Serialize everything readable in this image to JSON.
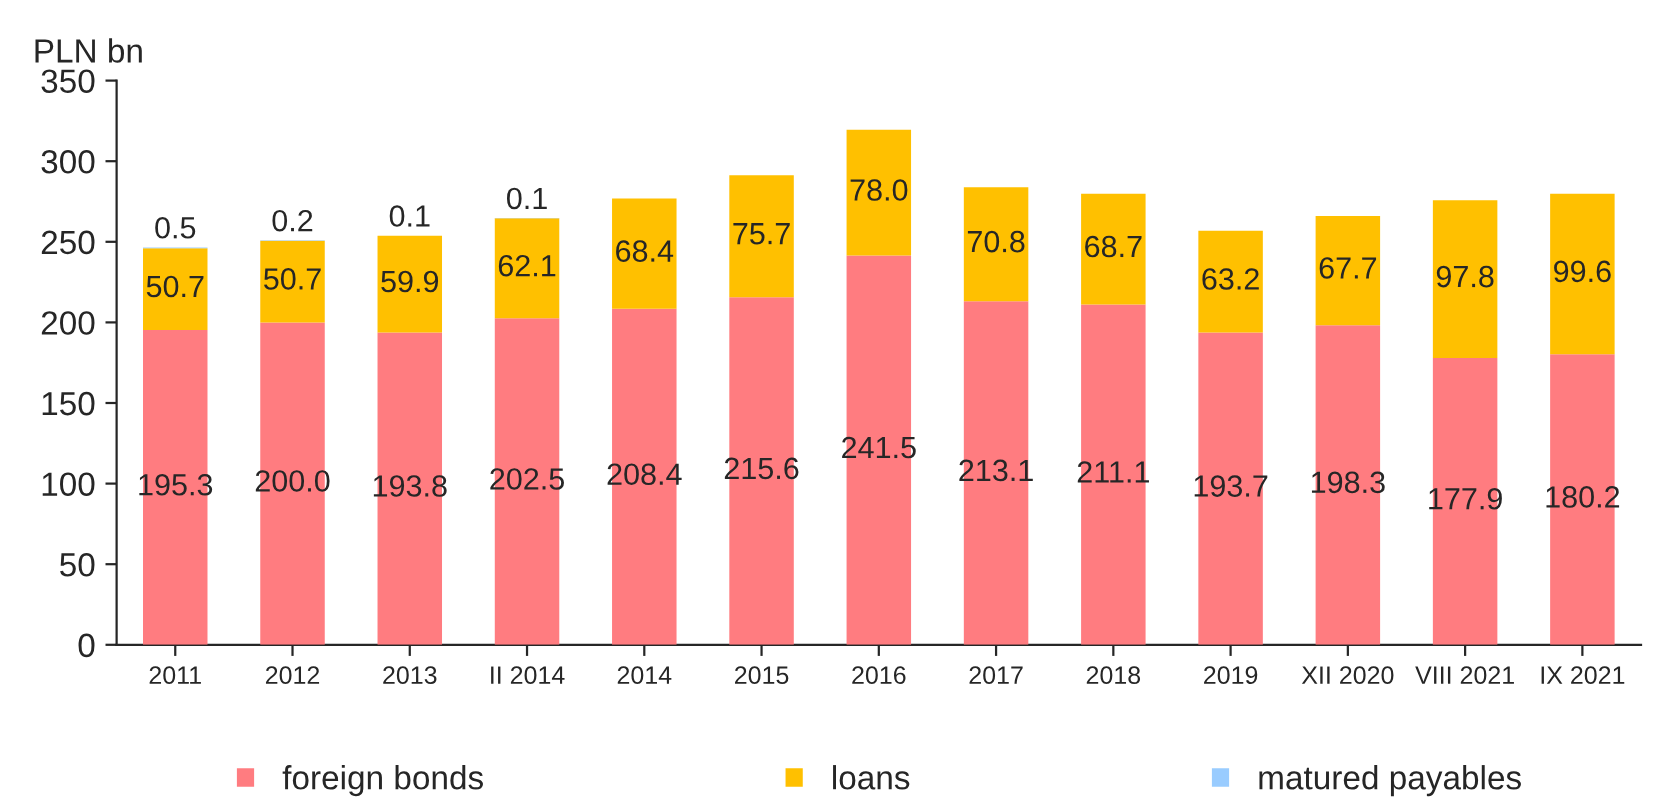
{
  "chart_data": {
    "type": "bar",
    "stacked": true,
    "ylabel": "PLN bn",
    "categories": [
      "2011",
      "2012",
      "2013",
      "II 2014",
      "2014",
      "2015",
      "2016",
      "2017",
      "2018",
      "2019",
      "XII 2020",
      "VIII 2021",
      "IX 2021"
    ],
    "series": [
      {
        "name": "foreign bonds",
        "color": "#ff7c80",
        "values": [
          195.3,
          200.0,
          193.8,
          202.5,
          208.4,
          215.6,
          241.5,
          213.1,
          211.1,
          193.7,
          198.3,
          177.9,
          180.2
        ],
        "value_labels": [
          "195.3",
          "200.0",
          "193.8",
          "202.5",
          "208.4",
          "215.6",
          "241.5",
          "213.1",
          "211.1",
          "193.7",
          "198.3",
          "177.9",
          "180.2"
        ]
      },
      {
        "name": "loans",
        "color": "#ffc000",
        "values": [
          50.7,
          50.7,
          59.9,
          62.1,
          68.4,
          75.7,
          78.0,
          70.8,
          68.7,
          63.2,
          67.7,
          97.8,
          99.6
        ],
        "value_labels": [
          "50.7",
          "50.7",
          "59.9",
          "62.1",
          "68.4",
          "75.7",
          "78.0",
          "70.8",
          "68.7",
          "63.2",
          "67.7",
          "97.8",
          "99.6"
        ]
      },
      {
        "name": "matured payables",
        "color": "#99ccff",
        "values": [
          0.5,
          0.2,
          0.1,
          0.1,
          null,
          null,
          null,
          null,
          null,
          null,
          null,
          null,
          null
        ],
        "value_labels": [
          "0.5",
          "0.2",
          "0.1",
          "0.1",
          null,
          null,
          null,
          null,
          null,
          null,
          null,
          null,
          null
        ]
      }
    ],
    "ylim": [
      0,
      350
    ],
    "yticks": [
      0,
      50,
      100,
      150,
      200,
      250,
      300,
      350
    ],
    "legend": "bottom",
    "grid": false
  }
}
